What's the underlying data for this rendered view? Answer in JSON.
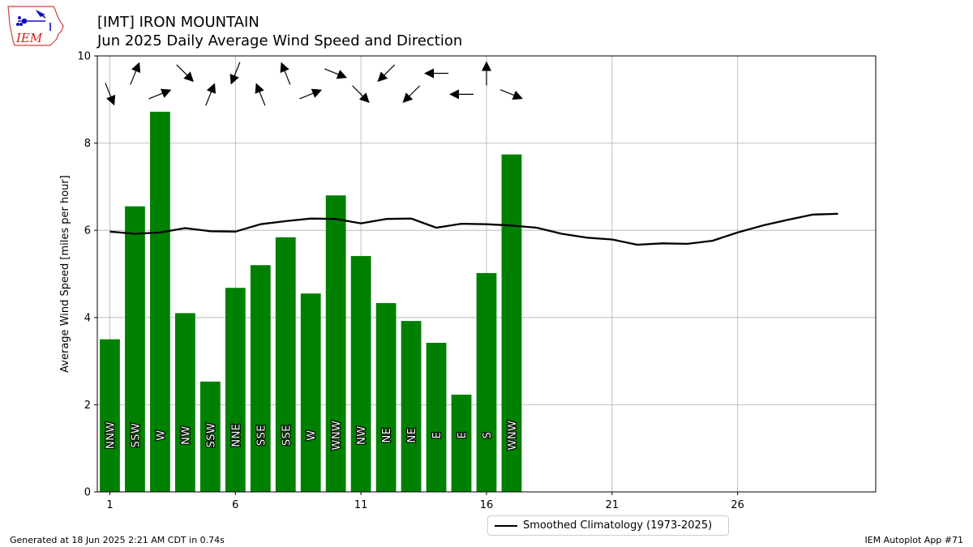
{
  "title_line1": "[IMT] IRON MOUNTAIN",
  "title_line2": "Jun 2025 Daily Average Wind Speed and Direction",
  "footer_left": "Generated at 18 Jun 2025 2:21 AM CDT in 0.74s",
  "footer_right": "IEM Autoplot App #71",
  "logo_text": "IEM",
  "colors": {
    "bar": "#008000",
    "climo": "#000000",
    "grid": "#b0b0b0"
  },
  "chart_data": {
    "type": "bar",
    "ylabel": "Average Wind Speed [miles per hour]",
    "xlabel": "",
    "ylim": [
      0,
      10
    ],
    "xlim": [
      0.5,
      31.5
    ],
    "xticks": [
      1,
      6,
      11,
      16,
      21,
      26
    ],
    "yticks": [
      0,
      2,
      4,
      6,
      8,
      10
    ],
    "grid": true,
    "legend_position": "bottom-center",
    "series": [
      {
        "kind": "bar",
        "days": [
          1,
          2,
          3,
          4,
          5,
          6,
          7,
          8,
          9,
          10,
          11,
          12,
          13,
          14,
          15,
          16,
          17
        ],
        "values": [
          3.5,
          6.55,
          8.72,
          4.1,
          2.53,
          4.68,
          5.2,
          5.84,
          4.55,
          6.8,
          5.41,
          4.33,
          3.92,
          3.42,
          2.23,
          5.02,
          7.74
        ],
        "directions": [
          "NNW",
          "SSW",
          "W",
          "NW",
          "SSW",
          "NNE",
          "SSE",
          "SSE",
          "W",
          "WNW",
          "NW",
          "NE",
          "NE",
          "E",
          "E",
          "S",
          "WNW"
        ],
        "arrow_heading_deg": [
          158,
          22,
          68,
          135,
          22,
          202,
          338,
          338,
          68,
          112,
          135,
          225,
          225,
          270,
          270,
          0,
          112
        ]
      },
      {
        "kind": "line",
        "name": "Smoothed Climatology (1973-2025)",
        "x": [
          1,
          2,
          3,
          4,
          5,
          6,
          7,
          8,
          9,
          10,
          11,
          12,
          13,
          14,
          15,
          16,
          17,
          18,
          19,
          20,
          21,
          22,
          23,
          24,
          25,
          26,
          27,
          28,
          29,
          30
        ],
        "y": [
          5.97,
          5.92,
          5.95,
          6.05,
          5.98,
          5.97,
          6.14,
          6.21,
          6.27,
          6.26,
          6.16,
          6.26,
          6.27,
          6.06,
          6.15,
          6.14,
          6.11,
          6.06,
          5.92,
          5.83,
          5.79,
          5.67,
          5.7,
          5.69,
          5.76,
          5.95,
          6.11,
          6.24,
          6.36,
          6.38
        ]
      }
    ]
  }
}
